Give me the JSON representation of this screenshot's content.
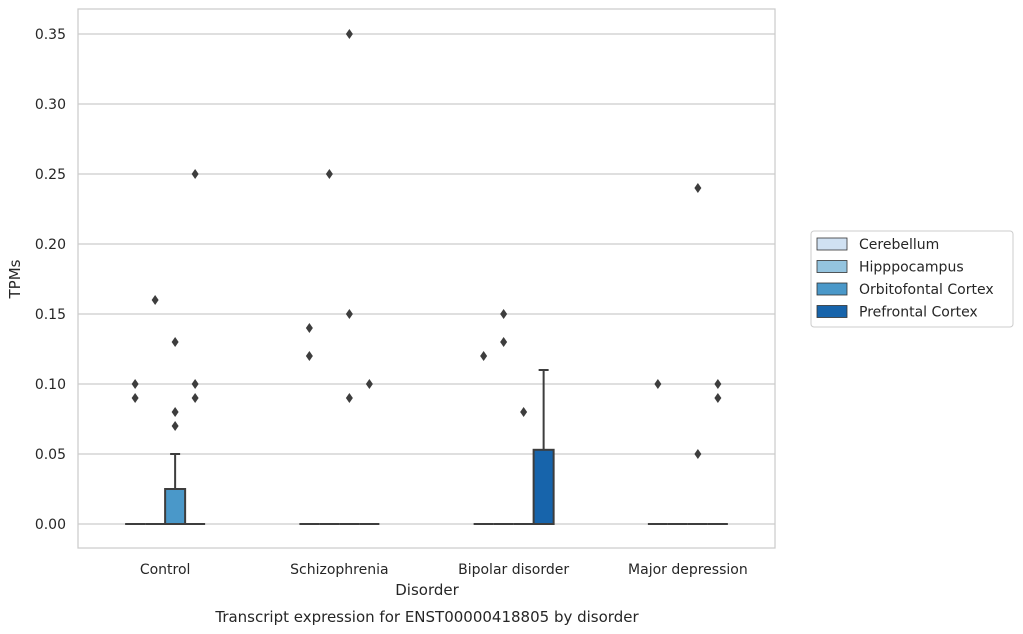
{
  "chart_data": {
    "type": "box",
    "title": "",
    "caption": "Transcript expression for ENST00000418805 by disorder",
    "xlabel": "Disorder",
    "ylabel": "TPMs",
    "ylim": [
      -0.018,
      0.367
    ],
    "yticks": [
      "0.00",
      "0.05",
      "0.10",
      "0.15",
      "0.20",
      "0.25",
      "0.30",
      "0.35"
    ],
    "ytick_values": [
      0,
      0.05,
      0.1,
      0.15,
      0.2,
      0.25,
      0.3,
      0.35
    ],
    "grid": "horizontal",
    "legend_position": "right",
    "categories": [
      "Control",
      "Schizophrenia",
      "Bipolar disorder",
      "Major depression"
    ],
    "series": [
      {
        "name": "Cerebellum",
        "color": "#d0e1f2",
        "boxes": [
          {
            "q1": 0,
            "median": 0,
            "q3": 0,
            "whisker_low": 0,
            "whisker_high": 0,
            "outliers": [
              0.1,
              0.09
            ]
          },
          {
            "q1": 0,
            "median": 0,
            "q3": 0,
            "whisker_low": 0,
            "whisker_high": 0,
            "outliers": [
              0.14,
              0.12
            ]
          },
          {
            "q1": 0,
            "median": 0,
            "q3": 0,
            "whisker_low": 0,
            "whisker_high": 0,
            "outliers": [
              0.12
            ]
          },
          {
            "q1": 0,
            "median": 0,
            "q3": 0,
            "whisker_low": 0,
            "whisker_high": 0,
            "outliers": [
              0.1
            ]
          }
        ]
      },
      {
        "name": "Hipppocampus",
        "color": "#94c4df",
        "boxes": [
          {
            "q1": 0,
            "median": 0,
            "q3": 0,
            "whisker_low": 0,
            "whisker_high": 0,
            "outliers": [
              0.16
            ]
          },
          {
            "q1": 0,
            "median": 0,
            "q3": 0,
            "whisker_low": 0,
            "whisker_high": 0,
            "outliers": [
              0.25
            ]
          },
          {
            "q1": 0,
            "median": 0,
            "q3": 0,
            "whisker_low": 0,
            "whisker_high": 0,
            "outliers": [
              0.15,
              0.13
            ]
          },
          {
            "q1": 0,
            "median": 0,
            "q3": 0,
            "whisker_low": 0,
            "whisker_high": 0,
            "outliers": []
          }
        ]
      },
      {
        "name": "Orbitofontal Cortex",
        "color": "#4a98c9",
        "boxes": [
          {
            "q1": 0,
            "median": 0,
            "q3": 0.025,
            "whisker_low": 0,
            "whisker_high": 0.05,
            "outliers": [
              0.13,
              0.08,
              0.07
            ]
          },
          {
            "q1": 0,
            "median": 0,
            "q3": 0,
            "whisker_low": 0,
            "whisker_high": 0,
            "outliers": [
              0.35,
              0.15,
              0.09
            ]
          },
          {
            "q1": 0,
            "median": 0,
            "q3": 0,
            "whisker_low": 0,
            "whisker_high": 0,
            "outliers": [
              0.08
            ]
          },
          {
            "q1": 0,
            "median": 0,
            "q3": 0,
            "whisker_low": 0,
            "whisker_high": 0,
            "outliers": [
              0.24,
              0.05
            ]
          }
        ]
      },
      {
        "name": "Prefrontal Cortex",
        "color": "#1764ab",
        "boxes": [
          {
            "q1": 0,
            "median": 0,
            "q3": 0,
            "whisker_low": 0,
            "whisker_high": 0,
            "outliers": [
              0.25,
              0.1,
              0.09
            ]
          },
          {
            "q1": 0,
            "median": 0,
            "q3": 0,
            "whisker_low": 0,
            "whisker_high": 0,
            "outliers": [
              0.1
            ]
          },
          {
            "q1": 0,
            "median": 0,
            "q3": 0.053,
            "whisker_low": 0,
            "whisker_high": 0.11,
            "outliers": []
          },
          {
            "q1": 0,
            "median": 0,
            "q3": 0,
            "whisker_low": 0,
            "whisker_high": 0,
            "outliers": [
              0.1,
              0.09
            ]
          }
        ]
      }
    ]
  }
}
